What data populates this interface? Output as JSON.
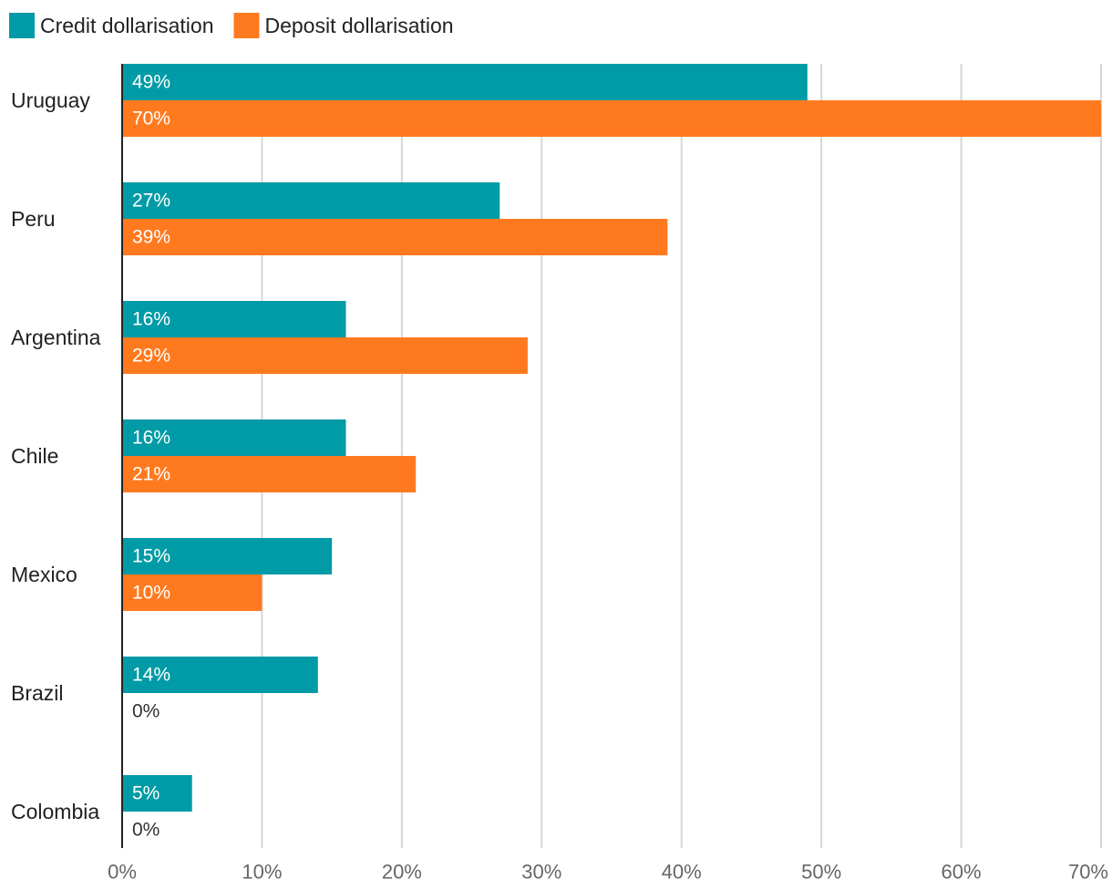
{
  "chart_data": {
    "type": "bar",
    "orientation": "horizontal",
    "categories": [
      "Uruguay",
      "Peru",
      "Argentina",
      "Chile",
      "Mexico",
      "Brazil",
      "Colombia"
    ],
    "series": [
      {
        "name": "Credit dollarisation",
        "color": "#009ba6",
        "values": [
          49,
          27,
          16,
          16,
          15,
          14,
          5
        ],
        "labels": [
          "49%",
          "27%",
          "16%",
          "16%",
          "15%",
          "14%",
          "5%"
        ]
      },
      {
        "name": "Deposit dollarisation",
        "color": "#ff7a1f",
        "values": [
          70,
          39,
          29,
          21,
          10,
          0,
          0
        ],
        "labels": [
          "70%",
          "39%",
          "29%",
          "21%",
          "10%",
          "0%",
          "0%"
        ]
      }
    ],
    "xlim": [
      0,
      70
    ],
    "xticks": [
      0,
      10,
      20,
      30,
      40,
      50,
      60,
      70
    ],
    "xtick_labels": [
      "0%",
      "10%",
      "20%",
      "30%",
      "40%",
      "50%",
      "60%",
      "70%"
    ],
    "grid": "vertical",
    "legend": "top-left",
    "title": "",
    "xlabel": "",
    "ylabel": ""
  }
}
